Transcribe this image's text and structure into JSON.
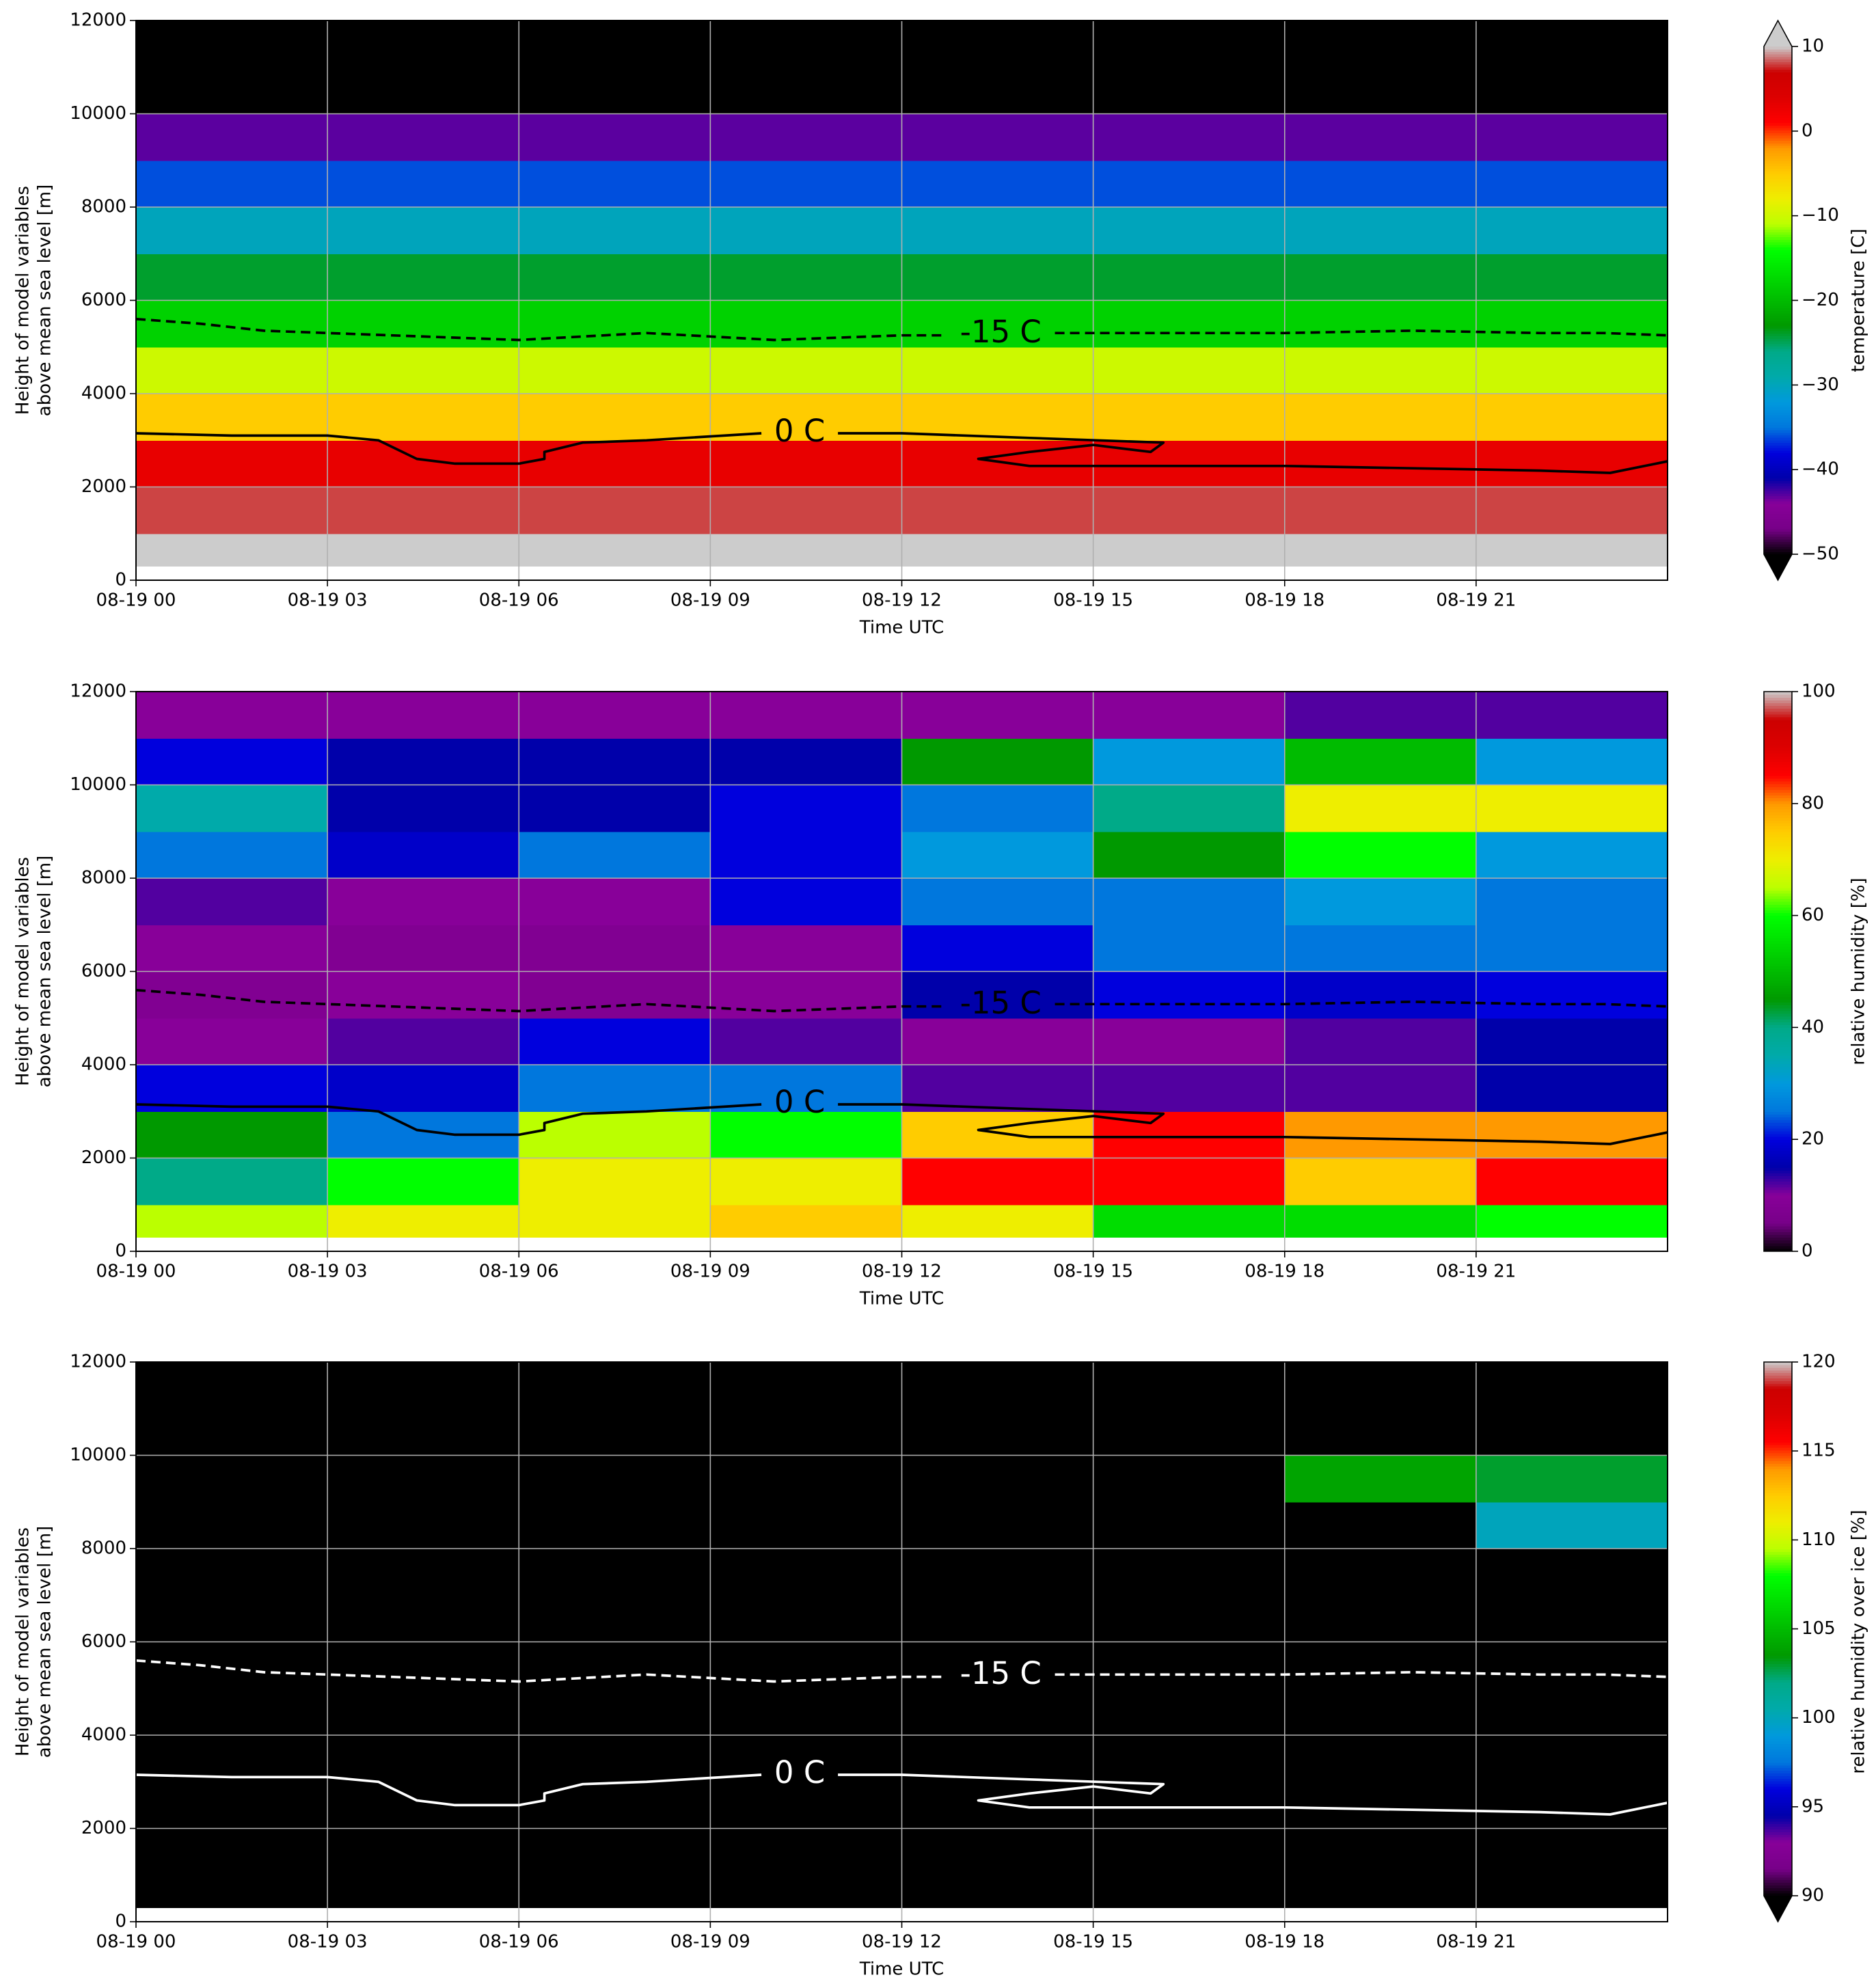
{
  "chart_data": [
    {
      "type": "heatmap",
      "xlabel": "Time UTC",
      "ylabel": [
        "Height of model variables",
        "above mean sea level [m]"
      ],
      "xlim": [
        0,
        24
      ],
      "ylim": [
        0,
        12000
      ],
      "xticks": [
        {
          "value": 0,
          "label": "08-19 00"
        },
        {
          "value": 3,
          "label": "08-19 03"
        },
        {
          "value": 6,
          "label": "08-19 06"
        },
        {
          "value": 9,
          "label": "08-19 09"
        },
        {
          "value": 12,
          "label": "08-19 12"
        },
        {
          "value": 15,
          "label": "08-19 15"
        },
        {
          "value": 18,
          "label": "08-19 18"
        },
        {
          "value": 21,
          "label": "08-19 21"
        }
      ],
      "yticks": [
        0,
        2000,
        4000,
        6000,
        8000,
        10000,
        12000
      ],
      "grid": true,
      "x_edges": [
        0,
        24
      ],
      "y_edges": [
        300,
        1000,
        2000,
        3000,
        4000,
        5000,
        6000,
        7000,
        8000,
        9000,
        10000,
        11000,
        12000
      ],
      "z": [
        [
          12
        ],
        [
          8
        ],
        [
          3
        ],
        [
          -5
        ],
        [
          -10
        ],
        [
          -18
        ],
        [
          -24
        ],
        [
          -30
        ],
        [
          -36
        ],
        [
          -43
        ],
        [
          -52
        ],
        [
          -55
        ]
      ],
      "zlim": [
        -50,
        10
      ],
      "zticks": [
        {
          "value": -50,
          "label": "−50"
        },
        {
          "value": -40,
          "label": "−40"
        },
        {
          "value": -30,
          "label": "−30"
        },
        {
          "value": -20,
          "label": "−20"
        },
        {
          "value": -10,
          "label": "−10"
        },
        0,
        10
      ],
      "zlabel": "temperature [C]",
      "extend": "both",
      "colormap": [
        "#000000",
        "#770088",
        "#880099",
        "#0000aa",
        "#0000dd",
        "#0077dd",
        "#0099dd",
        "#00aaaa",
        "#00aa88",
        "#009900",
        "#00bb00",
        "#00dd00",
        "#00ff00",
        "#bbff00",
        "#eeee00",
        "#ffcc00",
        "#ff9900",
        "#ff0000",
        "#dd0000",
        "#cc0000",
        "#cccccc"
      ],
      "under_color": "#000000",
      "over_color": "#cccccc",
      "contour_color": "#000000",
      "contours": [
        {
          "label": "-15 C",
          "style": "dashed",
          "x": [
            0,
            1,
            2,
            4,
            6,
            8,
            10,
            12,
            12.7,
            null,
            14.4,
            16,
            18,
            20,
            22,
            23,
            24
          ],
          "y": [
            5600,
            5500,
            5350,
            5250,
            5150,
            5300,
            5150,
            5250,
            5250,
            null,
            5300,
            5300,
            5300,
            5350,
            5300,
            5300,
            5250
          ]
        },
        {
          "label": "0 C",
          "style": "solid",
          "x": [
            0,
            1.5,
            3,
            3.8,
            4.4,
            5,
            6,
            6.4,
            6.4,
            7,
            8,
            9.8,
            null,
            11,
            12,
            14,
            16.1,
            15.9,
            15,
            14,
            13.2,
            14,
            16,
            18,
            20,
            22,
            23.1,
            24
          ],
          "y": [
            3150,
            3100,
            3100,
            3000,
            2600,
            2500,
            2500,
            2600,
            2750,
            2950,
            3000,
            3150,
            null,
            3150,
            3150,
            3050,
            2950,
            2750,
            2900,
            2750,
            2600,
            2450,
            2450,
            2450,
            2400,
            2350,
            2300,
            2550
          ]
        }
      ]
    },
    {
      "type": "heatmap",
      "xlabel": "Time UTC",
      "ylabel": [
        "Height of model variables",
        "above mean sea level [m]"
      ],
      "xlim": [
        0,
        24
      ],
      "ylim": [
        0,
        12000
      ],
      "xticks": [
        {
          "value": 0,
          "label": "08-19 00"
        },
        {
          "value": 3,
          "label": "08-19 03"
        },
        {
          "value": 6,
          "label": "08-19 06"
        },
        {
          "value": 9,
          "label": "08-19 09"
        },
        {
          "value": 12,
          "label": "08-19 12"
        },
        {
          "value": 15,
          "label": "08-19 15"
        },
        {
          "value": 18,
          "label": "08-19 18"
        },
        {
          "value": 21,
          "label": "08-19 21"
        }
      ],
      "yticks": [
        0,
        2000,
        4000,
        6000,
        8000,
        10000,
        12000
      ],
      "grid": true,
      "x_edges": [
        0,
        3,
        6,
        9,
        12,
        15,
        18,
        21,
        24
      ],
      "y_edges": [
        300,
        1000,
        2000,
        3000,
        4000,
        5000,
        6000,
        7000,
        8000,
        9000,
        10000,
        11000,
        12000
      ],
      "z": [
        [
          65,
          70,
          70,
          75,
          70,
          55,
          55,
          60
        ],
        [
          40,
          60,
          70,
          70,
          85,
          85,
          75,
          85
        ],
        [
          45,
          25,
          65,
          60,
          75,
          85,
          80,
          80
        ],
        [
          20,
          18,
          25,
          25,
          12,
          12,
          12,
          15
        ],
        [
          10,
          12,
          20,
          12,
          10,
          10,
          12,
          15
        ],
        [
          8,
          10,
          8,
          10,
          15,
          20,
          18,
          20
        ],
        [
          10,
          8,
          8,
          10,
          20,
          25,
          25,
          25
        ],
        [
          12,
          10,
          10,
          20,
          25,
          25,
          30,
          25
        ],
        [
          25,
          18,
          25,
          20,
          30,
          45,
          60,
          30
        ],
        [
          35,
          15,
          15,
          20,
          25,
          40,
          70,
          70
        ],
        [
          20,
          15,
          15,
          15,
          45,
          30,
          50,
          30
        ],
        [
          10,
          10,
          10,
          10,
          10,
          10,
          12,
          12
        ]
      ],
      "zlim": [
        0,
        100
      ],
      "zticks": [
        0,
        20,
        40,
        60,
        80,
        100
      ],
      "zlabel": "relative humidity [%]",
      "extend": "neither",
      "colormap": [
        "#000000",
        "#770088",
        "#880099",
        "#0000aa",
        "#0000dd",
        "#0077dd",
        "#0099dd",
        "#00aaaa",
        "#00aa88",
        "#009900",
        "#00bb00",
        "#00dd00",
        "#00ff00",
        "#bbff00",
        "#eeee00",
        "#ffcc00",
        "#ff9900",
        "#ff0000",
        "#dd0000",
        "#cc0000",
        "#cccccc"
      ],
      "under_color": "#000000",
      "over_color": "#cccccc",
      "contour_color": "#000000",
      "contours": [
        {
          "label": "-15 C",
          "style": "dashed",
          "x": [
            0,
            1,
            2,
            4,
            6,
            8,
            10,
            12,
            12.7,
            null,
            14.4,
            16,
            18,
            20,
            22,
            23,
            24
          ],
          "y": [
            5600,
            5500,
            5350,
            5250,
            5150,
            5300,
            5150,
            5250,
            5250,
            null,
            5300,
            5300,
            5300,
            5350,
            5300,
            5300,
            5250
          ]
        },
        {
          "label": "0 C",
          "style": "solid",
          "x": [
            0,
            1.5,
            3,
            3.8,
            4.4,
            5,
            6,
            6.4,
            6.4,
            7,
            8,
            9.8,
            null,
            11,
            12,
            14,
            16.1,
            15.9,
            15,
            14,
            13.2,
            14,
            16,
            18,
            20,
            22,
            23.1,
            24
          ],
          "y": [
            3150,
            3100,
            3100,
            3000,
            2600,
            2500,
            2500,
            2600,
            2750,
            2950,
            3000,
            3150,
            null,
            3150,
            3150,
            3050,
            2950,
            2750,
            2900,
            2750,
            2600,
            2450,
            2450,
            2450,
            2400,
            2350,
            2300,
            2550
          ]
        }
      ]
    },
    {
      "type": "heatmap",
      "xlabel": "Time UTC",
      "ylabel": [
        "Height of model variables",
        "above mean sea level [m]"
      ],
      "xlim": [
        0,
        24
      ],
      "ylim": [
        0,
        12000
      ],
      "xticks": [
        {
          "value": 0,
          "label": "08-19 00"
        },
        {
          "value": 3,
          "label": "08-19 03"
        },
        {
          "value": 6,
          "label": "08-19 06"
        },
        {
          "value": 9,
          "label": "08-19 09"
        },
        {
          "value": 12,
          "label": "08-19 12"
        },
        {
          "value": 15,
          "label": "08-19 15"
        },
        {
          "value": 18,
          "label": "08-19 18"
        },
        {
          "value": 21,
          "label": "08-19 21"
        }
      ],
      "yticks": [
        0,
        2000,
        4000,
        6000,
        8000,
        10000,
        12000
      ],
      "grid": true,
      "x_edges": [
        0,
        18,
        21,
        24
      ],
      "y_edges": [
        300,
        1000,
        2000,
        3000,
        4000,
        5000,
        6000,
        7000,
        8000,
        9000,
        10000,
        11000,
        12000
      ],
      "z": [
        [
          85,
          85,
          85
        ],
        [
          85,
          85,
          85
        ],
        [
          85,
          85,
          85
        ],
        [
          85,
          85,
          85
        ],
        [
          85,
          85,
          85
        ],
        [
          85,
          85,
          85
        ],
        [
          85,
          85,
          85
        ],
        [
          85,
          85,
          85
        ],
        [
          85,
          85,
          100
        ],
        [
          85,
          104,
          103
        ],
        [
          85,
          85,
          85
        ],
        [
          85,
          85,
          85
        ]
      ],
      "zlim": [
        90,
        120
      ],
      "zticks": [
        90,
        95,
        100,
        105,
        110,
        115,
        120
      ],
      "zlabel": "relative humidity over ice [%]",
      "extend": "min",
      "colormap": [
        "#000000",
        "#770088",
        "#880099",
        "#0000aa",
        "#0000dd",
        "#0077dd",
        "#0099dd",
        "#00aaaa",
        "#00aa88",
        "#009900",
        "#00bb00",
        "#00dd00",
        "#00ff00",
        "#bbff00",
        "#eeee00",
        "#ffcc00",
        "#ff9900",
        "#ff0000",
        "#dd0000",
        "#cc0000",
        "#cccccc"
      ],
      "under_color": "#000000",
      "over_color": "#cccccc",
      "contour_color": "#ffffff",
      "contours": [
        {
          "label": "-15 C",
          "style": "dashed",
          "x": [
            0,
            1,
            2,
            4,
            6,
            8,
            10,
            12,
            12.7,
            null,
            14.4,
            16,
            18,
            20,
            22,
            23,
            24
          ],
          "y": [
            5600,
            5500,
            5350,
            5250,
            5150,
            5300,
            5150,
            5250,
            5250,
            null,
            5300,
            5300,
            5300,
            5350,
            5300,
            5300,
            5250
          ]
        },
        {
          "label": "0 C",
          "style": "solid",
          "x": [
            0,
            1.5,
            3,
            3.8,
            4.4,
            5,
            6,
            6.4,
            6.4,
            7,
            8,
            9.8,
            null,
            11,
            12,
            14,
            16.1,
            15.9,
            15,
            14,
            13.2,
            14,
            16,
            18,
            20,
            22,
            23.1,
            24
          ],
          "y": [
            3150,
            3100,
            3100,
            3000,
            2600,
            2500,
            2500,
            2600,
            2750,
            2950,
            3000,
            3150,
            null,
            3150,
            3150,
            3050,
            2950,
            2750,
            2900,
            2750,
            2600,
            2450,
            2450,
            2450,
            2400,
            2350,
            2300,
            2550
          ]
        }
      ]
    }
  ]
}
